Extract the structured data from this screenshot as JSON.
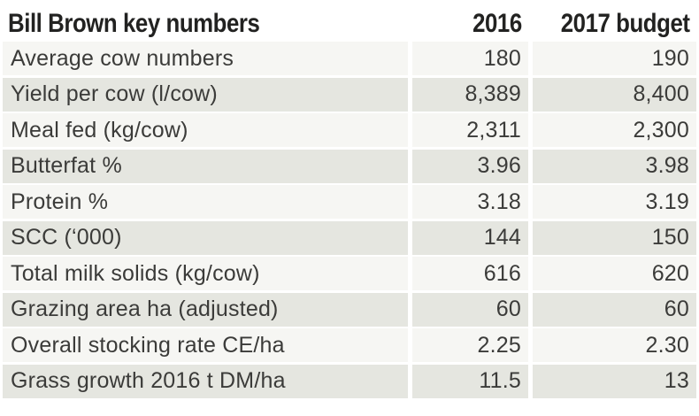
{
  "chart_data": {
    "type": "table",
    "title": "Bill Brown key numbers",
    "columns": [
      "2016",
      "2017 budget"
    ],
    "rows": [
      {
        "label": "Average cow numbers",
        "y2016": "180",
        "y2017": "190"
      },
      {
        "label": "Yield per cow (l/cow)",
        "y2016": "8,389",
        "y2017": "8,400"
      },
      {
        "label": "Meal fed (kg/cow)",
        "y2016": "2,311",
        "y2017": "2,300"
      },
      {
        "label": "Butterfat %",
        "y2016": "3.96",
        "y2017": "3.98"
      },
      {
        "label": "Protein %",
        "y2016": "3.18",
        "y2017": "3.19"
      },
      {
        "label": "SCC (‘000)",
        "y2016": "144",
        "y2017": "150"
      },
      {
        "label": "Total milk solids (kg/cow)",
        "y2016": "616",
        "y2017": "620"
      },
      {
        "label": "Grazing area ha (adjusted)",
        "y2016": "60",
        "y2017": "60"
      },
      {
        "label": "Overall stocking rate CE/ha",
        "y2016": "2.25",
        "y2017": "2.30"
      },
      {
        "label": "Grass growth 2016 t DM/ha",
        "y2016": "11.5",
        "y2017": "13"
      }
    ],
    "layout_hints": {
      "row_striping": "alternating starting dark",
      "value_alignment": "right",
      "label_alignment": "left"
    }
  },
  "colors": {
    "header-text": "#222221",
    "body-text": "#3b3b39",
    "row-shade-dark": "#e5e6e0",
    "row-shade-light": "#f6f6f3",
    "gutter": "#ffffff"
  }
}
